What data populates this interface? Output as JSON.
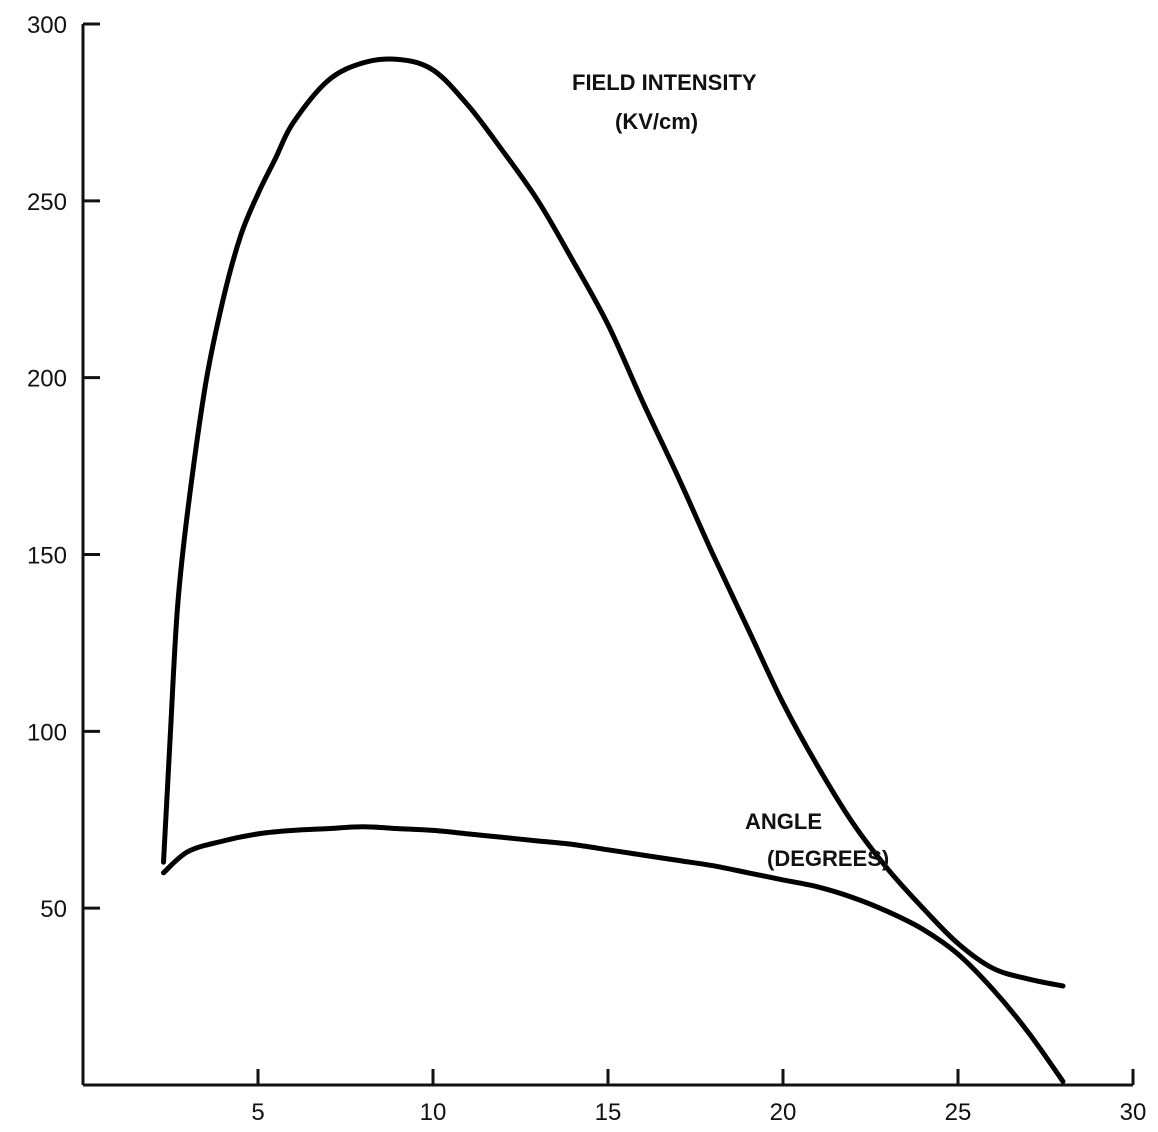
{
  "chart_data": {
    "type": "line",
    "title": "",
    "xlabel": "",
    "ylabel": "",
    "xlim": [
      0,
      30
    ],
    "ylim": [
      0,
      300
    ],
    "x_ticks": [
      5,
      10,
      15,
      20,
      25,
      30
    ],
    "y_ticks": [
      50,
      100,
      150,
      200,
      250,
      300
    ],
    "x_tick_labels": [
      "5",
      "10",
      "15",
      "20",
      "25",
      "30"
    ],
    "y_tick_labels": [
      "50",
      "100",
      "150",
      "200",
      "250",
      "300"
    ],
    "grid": false,
    "legend": "none",
    "series": [
      {
        "name": "FIELD INTENSITY",
        "name_line2": "(KV/cm)",
        "x": [
          2.3,
          2.5,
          2.7,
          3.0,
          3.5,
          4.0,
          4.5,
          5.0,
          5.5,
          6.0,
          7.0,
          8.0,
          9.0,
          10.0,
          11.0,
          12.0,
          13.0,
          14.0,
          15.0,
          16.0,
          17.0,
          18.0,
          19.0,
          20.0,
          21.0,
          22.0,
          23.0,
          24.0,
          25.0,
          26.0,
          27.0,
          28.0
        ],
        "y": [
          63,
          100,
          135,
          163,
          198,
          222,
          240,
          252,
          262,
          272,
          284,
          289,
          290,
          287,
          277,
          264,
          250,
          233,
          215,
          193,
          172,
          150,
          129,
          108,
          90,
          74,
          61,
          50,
          40,
          33,
          30,
          28
        ],
        "values_note": ""
      },
      {
        "name": "ANGLE",
        "name_line2": "(DEGREES)",
        "x": [
          2.3,
          3.0,
          4.0,
          5.0,
          6.0,
          7.0,
          8.0,
          9.0,
          10.0,
          11.0,
          12.0,
          13.0,
          14.0,
          15.0,
          16.0,
          17.0,
          18.0,
          19.0,
          20.0,
          21.0,
          22.0,
          23.0,
          24.0,
          25.0,
          26.0,
          27.0,
          28.0
        ],
        "y": [
          60,
          66,
          69,
          71,
          72,
          72.5,
          73,
          72.5,
          72,
          71,
          70,
          69,
          68,
          66.5,
          65,
          63.5,
          62,
          60,
          58,
          56,
          53,
          49,
          44,
          37,
          27,
          15,
          1
        ]
      }
    ]
  }
}
